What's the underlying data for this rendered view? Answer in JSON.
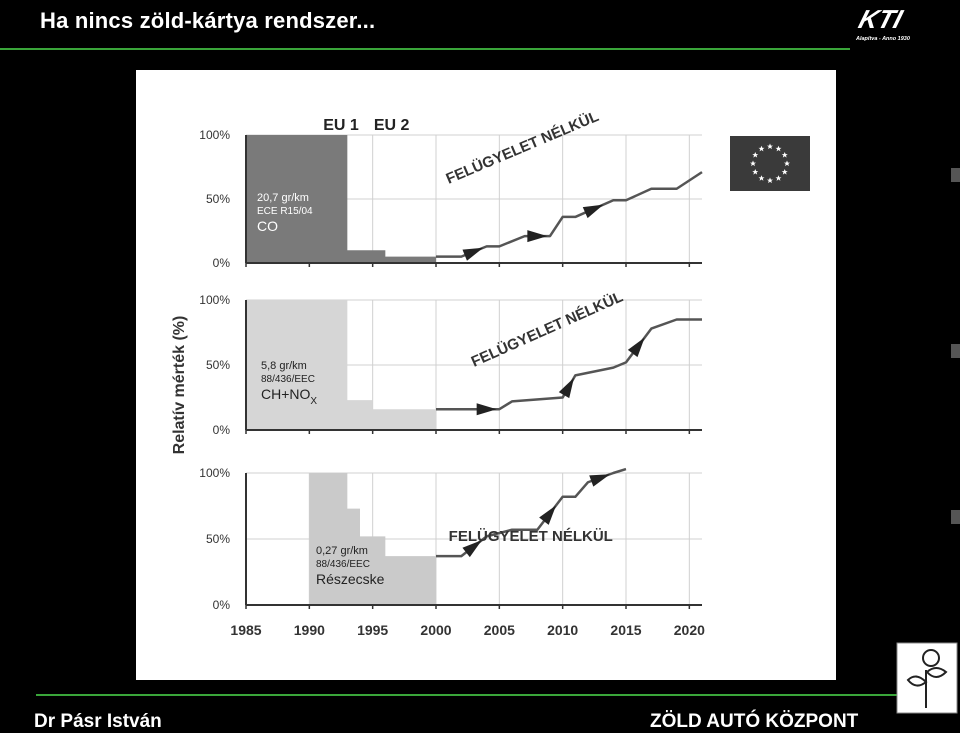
{
  "slide": {
    "title": "Ha nincs zöld-kártya rendszer...",
    "footer_left": "Dr Pásr István",
    "footer_right": "ZÖLD AUTÓ KÖZPONT",
    "logo_text": "KTI",
    "logo_subtitle": "Alapítva - Anno 1930"
  },
  "colors": {
    "background": "#000000",
    "rule": "#3aa63a",
    "co_fill": "#7a7a7a",
    "hcnox_fill": "#d6d6d6",
    "pm_fill": "#cacaca",
    "trend_line": "#555555",
    "eu_flag": "#3a3a3a"
  },
  "chart_data": {
    "type": "area",
    "ylabel": "Relatív mérték (%)",
    "x_ticks": [
      "1985",
      "1990",
      "1995",
      "2000",
      "2005",
      "2010",
      "2015",
      "2020"
    ],
    "xlim": [
      1985,
      2021
    ],
    "ylim": [
      0,
      100
    ],
    "eu_labels": [
      {
        "text": "EU 1",
        "year": 1992.5
      },
      {
        "text": "EU 2",
        "year": 1996.5
      }
    ],
    "trend_label": "FELÜGYELET NÉLKÜL",
    "panels": [
      {
        "name": "CO",
        "y_ticks": [
          "100%",
          "50%",
          "0%"
        ],
        "limit_label": "20,7 gr/km",
        "regulation": "ECE R15/04",
        "pollutant": "CO",
        "limit_steps": [
          {
            "x": 1985,
            "y": 100
          },
          {
            "x": 1993,
            "y": 100
          },
          {
            "x": 1993,
            "y": 10
          },
          {
            "x": 1996,
            "y": 10
          },
          {
            "x": 1996,
            "y": 5
          },
          {
            "x": 2000,
            "y": 5
          }
        ],
        "trend": [
          {
            "x": 2000,
            "y": 5
          },
          {
            "x": 2002,
            "y": 5
          },
          {
            "x": 2004,
            "y": 13
          },
          {
            "x": 2005,
            "y": 13
          },
          {
            "x": 2007,
            "y": 21
          },
          {
            "x": 2009,
            "y": 21
          },
          {
            "x": 2010,
            "y": 36
          },
          {
            "x": 2011,
            "y": 36
          },
          {
            "x": 2014,
            "y": 49
          },
          {
            "x": 2015,
            "y": 49
          },
          {
            "x": 2017,
            "y": 58
          },
          {
            "x": 2019,
            "y": 58
          },
          {
            "x": 2021,
            "y": 71
          }
        ]
      },
      {
        "name": "HC+NOx",
        "y_ticks": [
          "100%",
          "50%",
          "0%"
        ],
        "limit_label": "5,8 gr/km",
        "regulation": "88/436/EEC",
        "pollutant": "CH+NO",
        "pollutant_sub": "X",
        "limit_steps": [
          {
            "x": 1985,
            "y": 100
          },
          {
            "x": 1993,
            "y": 100
          },
          {
            "x": 1993,
            "y": 23
          },
          {
            "x": 1995,
            "y": 23
          },
          {
            "x": 1995,
            "y": 16
          },
          {
            "x": 2000,
            "y": 16
          }
        ],
        "trend": [
          {
            "x": 2000,
            "y": 16
          },
          {
            "x": 2003,
            "y": 16
          },
          {
            "x": 2005,
            "y": 16
          },
          {
            "x": 2006,
            "y": 22
          },
          {
            "x": 2010,
            "y": 25
          },
          {
            "x": 2011,
            "y": 42
          },
          {
            "x": 2014,
            "y": 48
          },
          {
            "x": 2015,
            "y": 52
          },
          {
            "x": 2017,
            "y": 78
          },
          {
            "x": 2019,
            "y": 85
          },
          {
            "x": 2021,
            "y": 85
          }
        ]
      },
      {
        "name": "Részecske",
        "y_ticks": [
          "100%",
          "50%",
          "0%"
        ],
        "limit_label": "0,27 gr/km",
        "regulation": "88/436/EEC",
        "pollutant": "Részecske",
        "limit_steps": [
          {
            "x": 1990,
            "y": 100
          },
          {
            "x": 1993,
            "y": 100
          },
          {
            "x": 1993,
            "y": 73
          },
          {
            "x": 1994,
            "y": 73
          },
          {
            "x": 1994,
            "y": 52
          },
          {
            "x": 1996,
            "y": 52
          },
          {
            "x": 1996,
            "y": 37
          },
          {
            "x": 2000,
            "y": 37
          }
        ],
        "trend": [
          {
            "x": 2000,
            "y": 37
          },
          {
            "x": 2002,
            "y": 37
          },
          {
            "x": 2004,
            "y": 52
          },
          {
            "x": 2006,
            "y": 57
          },
          {
            "x": 2008,
            "y": 57
          },
          {
            "x": 2010,
            "y": 82
          },
          {
            "x": 2011,
            "y": 82
          },
          {
            "x": 2012,
            "y": 93
          },
          {
            "x": 2014,
            "y": 100
          },
          {
            "x": 2015,
            "y": 103
          }
        ]
      }
    ]
  }
}
